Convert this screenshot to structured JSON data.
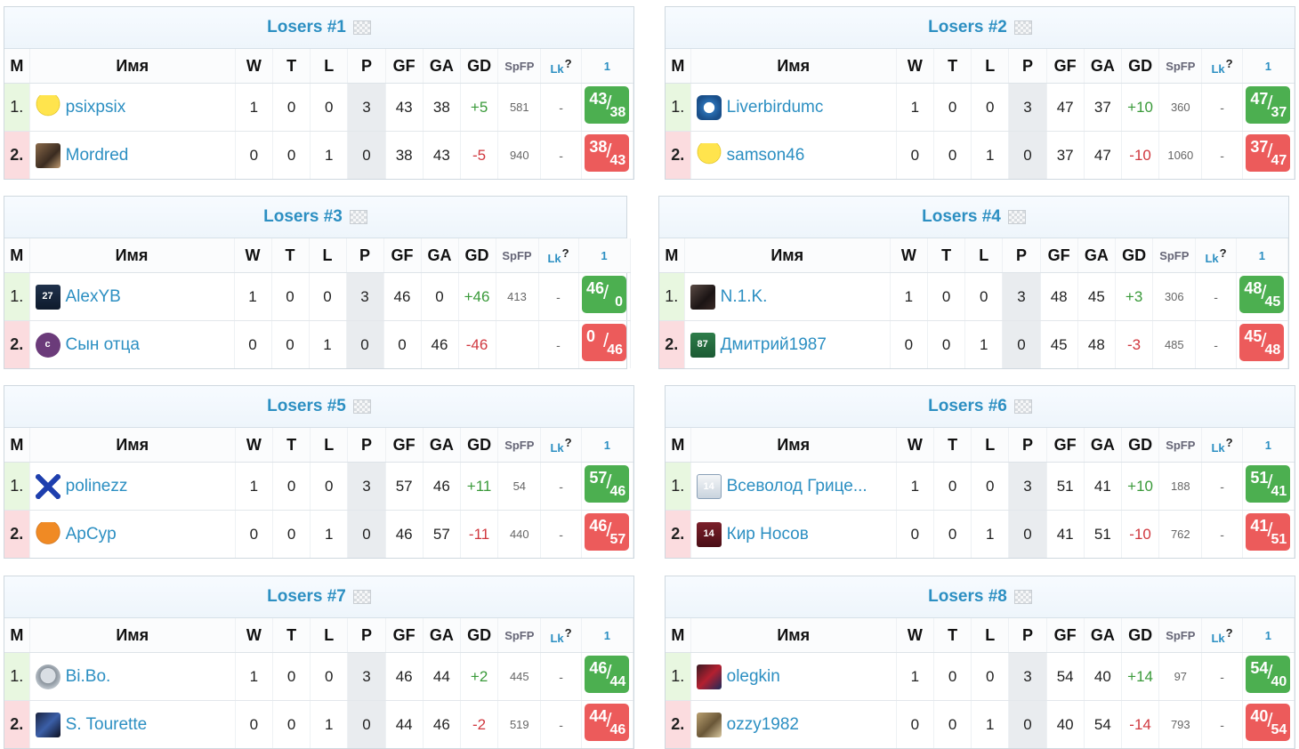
{
  "columns": {
    "m": "M",
    "name": "Имя",
    "w": "W",
    "t": "T",
    "l": "L",
    "p": "P",
    "gf": "GF",
    "ga": "GA",
    "gd": "GD",
    "spfp": "SpFP",
    "lk": "Lk",
    "lk_help": "?",
    "round": "1"
  },
  "colors": {
    "accent": "#2c8fc2",
    "win": "#4caf50",
    "loss": "#ec5b5b",
    "win_row": "#e8f7e0",
    "loss_row": "#fbdcdf"
  },
  "groups": [
    {
      "title": "Losers #1",
      "rows": [
        {
          "pos": "1.",
          "name": "psixpsix",
          "avatar": "yellow-shirt-icon",
          "w": "1",
          "t": "0",
          "l": "0",
          "p": "3",
          "gf": "43",
          "ga": "38",
          "gd": "+5",
          "spfp": "581",
          "lk": "-",
          "score_for": "43",
          "score_against": "38",
          "result": "win"
        },
        {
          "pos": "2.",
          "name": "Mordred",
          "avatar": "portrait-icon",
          "w": "0",
          "t": "0",
          "l": "1",
          "p": "0",
          "gf": "38",
          "ga": "43",
          "gd": "-5",
          "spfp": "940",
          "lk": "-",
          "score_for": "38",
          "score_against": "43",
          "result": "loss"
        }
      ]
    },
    {
      "title": "Losers #2",
      "rows": [
        {
          "pos": "1.",
          "name": "Liverbirdumc",
          "avatar": "blue-crest-icon",
          "w": "1",
          "t": "0",
          "l": "0",
          "p": "3",
          "gf": "47",
          "ga": "37",
          "gd": "+10",
          "spfp": "360",
          "lk": "-",
          "score_for": "47",
          "score_against": "37",
          "result": "win"
        },
        {
          "pos": "2.",
          "name": "samson46",
          "avatar": "yellow-shirt-icon",
          "w": "0",
          "t": "0",
          "l": "1",
          "p": "0",
          "gf": "37",
          "ga": "47",
          "gd": "-10",
          "spfp": "1060",
          "lk": "-",
          "score_for": "37",
          "score_against": "47",
          "result": "loss"
        }
      ]
    },
    {
      "title": "Losers #3",
      "rows": [
        {
          "pos": "1.",
          "name": "AlexYB",
          "avatar": "dark-shirt-27-icon",
          "w": "1",
          "t": "0",
          "l": "0",
          "p": "3",
          "gf": "46",
          "ga": "0",
          "gd": "+46",
          "spfp": "413",
          "lk": "-",
          "score_for": "46",
          "score_against": "0",
          "result": "win"
        },
        {
          "pos": "2.",
          "name": "Сын отца",
          "avatar": "purple-circle-c-icon",
          "w": "0",
          "t": "0",
          "l": "1",
          "p": "0",
          "gf": "0",
          "ga": "46",
          "gd": "-46",
          "spfp": "",
          "lk": "-",
          "score_for": "0",
          "score_against": "46",
          "result": "loss"
        }
      ]
    },
    {
      "title": "Losers #4",
      "rows": [
        {
          "pos": "1.",
          "name": "N.1.K.",
          "avatar": "dark-photo-icon",
          "w": "1",
          "t": "0",
          "l": "0",
          "p": "3",
          "gf": "48",
          "ga": "45",
          "gd": "+3",
          "spfp": "306",
          "lk": "-",
          "score_for": "48",
          "score_against": "45",
          "result": "win"
        },
        {
          "pos": "2.",
          "name": "Дмитрий1987",
          "avatar": "green-shirt-87-icon",
          "w": "0",
          "t": "0",
          "l": "1",
          "p": "0",
          "gf": "45",
          "ga": "48",
          "gd": "-3",
          "spfp": "485",
          "lk": "-",
          "score_for": "45",
          "score_against": "48",
          "result": "loss"
        }
      ]
    },
    {
      "title": "Losers #5",
      "rows": [
        {
          "pos": "1.",
          "name": "polinezz",
          "avatar": "blue-cross-icon",
          "w": "1",
          "t": "0",
          "l": "0",
          "p": "3",
          "gf": "57",
          "ga": "46",
          "gd": "+11",
          "spfp": "54",
          "lk": "-",
          "score_for": "57",
          "score_against": "46",
          "result": "win"
        },
        {
          "pos": "2.",
          "name": "ApCyp",
          "avatar": "orange-shirt-icon",
          "w": "0",
          "t": "0",
          "l": "1",
          "p": "0",
          "gf": "46",
          "ga": "57",
          "gd": "-11",
          "spfp": "440",
          "lk": "-",
          "score_for": "46",
          "score_against": "57",
          "result": "loss"
        }
      ]
    },
    {
      "title": "Losers #6",
      "rows": [
        {
          "pos": "1.",
          "name": "Всеволод Грице...",
          "avatar": "white-shirt-icon",
          "w": "1",
          "t": "0",
          "l": "0",
          "p": "3",
          "gf": "51",
          "ga": "41",
          "gd": "+10",
          "spfp": "188",
          "lk": "-",
          "score_for": "51",
          "score_against": "41",
          "result": "win"
        },
        {
          "pos": "2.",
          "name": "Кир Носов",
          "avatar": "maroon-shirt-icon",
          "w": "0",
          "t": "0",
          "l": "1",
          "p": "0",
          "gf": "41",
          "ga": "51",
          "gd": "-10",
          "spfp": "762",
          "lk": "-",
          "score_for": "41",
          "score_against": "51",
          "result": "loss"
        }
      ]
    },
    {
      "title": "Losers #7",
      "rows": [
        {
          "pos": "1.",
          "name": "Bi.Bo.",
          "avatar": "astronaut-icon",
          "w": "1",
          "t": "0",
          "l": "0",
          "p": "3",
          "gf": "46",
          "ga": "44",
          "gd": "+2",
          "spfp": "445",
          "lk": "-",
          "score_for": "46",
          "score_against": "44",
          "result": "win"
        },
        {
          "pos": "2.",
          "name": "S. Tourette",
          "avatar": "player-photo-icon",
          "w": "0",
          "t": "0",
          "l": "1",
          "p": "0",
          "gf": "44",
          "ga": "46",
          "gd": "-2",
          "spfp": "519",
          "lk": "-",
          "score_for": "44",
          "score_against": "46",
          "result": "loss"
        }
      ]
    },
    {
      "title": "Losers #8",
      "rows": [
        {
          "pos": "1.",
          "name": "olegkin",
          "avatar": "red-photo-icon",
          "w": "1",
          "t": "0",
          "l": "0",
          "p": "3",
          "gf": "54",
          "ga": "40",
          "gd": "+14",
          "spfp": "97",
          "lk": "-",
          "score_for": "54",
          "score_against": "40",
          "result": "win"
        },
        {
          "pos": "2.",
          "name": "ozzy1982",
          "avatar": "khaki-photo-icon",
          "w": "0",
          "t": "0",
          "l": "1",
          "p": "0",
          "gf": "40",
          "ga": "54",
          "gd": "-14",
          "spfp": "793",
          "lk": "-",
          "score_for": "40",
          "score_against": "54",
          "result": "loss"
        }
      ]
    }
  ]
}
